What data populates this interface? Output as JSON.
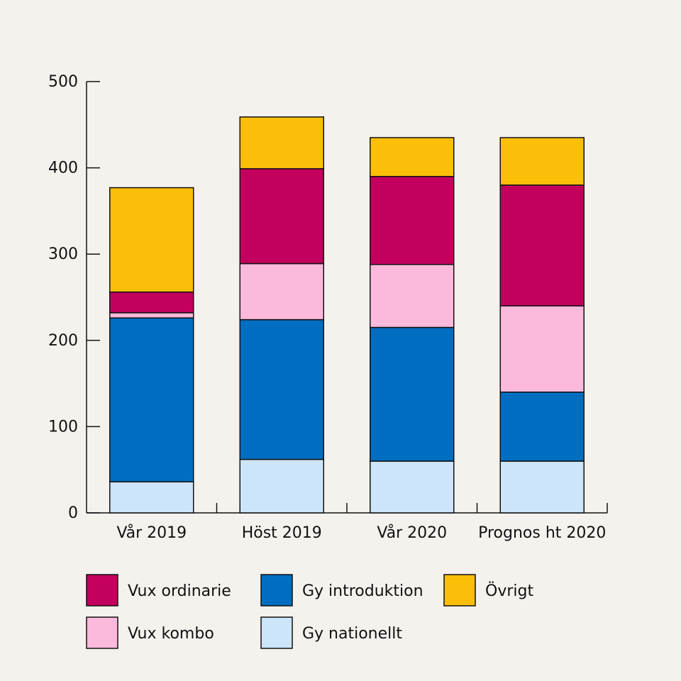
{
  "colors": {
    "background": "#f5f2ee",
    "axis": "#111111"
  },
  "chart_data": {
    "type": "bar",
    "stacked": true,
    "title": "",
    "xlabel": "",
    "ylabel": "",
    "ylim": [
      0,
      500
    ],
    "yticks": [
      0,
      100,
      200,
      300,
      400,
      500
    ],
    "grid": false,
    "legend_position": "bottom",
    "categories": [
      "Vår 2019",
      "Höst 2019",
      "Vår 2020",
      "Prognos ht 2020"
    ],
    "series": [
      {
        "name": "Gy nationellt",
        "color": "#cce5fb",
        "values": [
          36,
          62,
          60,
          60
        ]
      },
      {
        "name": "Gy introduktion",
        "color": "#006ec0",
        "values": [
          190,
          162,
          155,
          80
        ]
      },
      {
        "name": "Vux kombo",
        "color": "#fbb9dc",
        "values": [
          6,
          65,
          73,
          100
        ]
      },
      {
        "name": "Vux ordinarie",
        "color": "#c4005e",
        "values": [
          24,
          110,
          102,
          140
        ]
      },
      {
        "name": "Övrigt",
        "color": "#fbbf0a",
        "values": [
          121,
          60,
          45,
          55
        ]
      }
    ],
    "legend_order": [
      "Vux ordinarie",
      "Gy introduktion",
      "Övrigt",
      "Vux kombo",
      "Gy nationellt"
    ]
  }
}
